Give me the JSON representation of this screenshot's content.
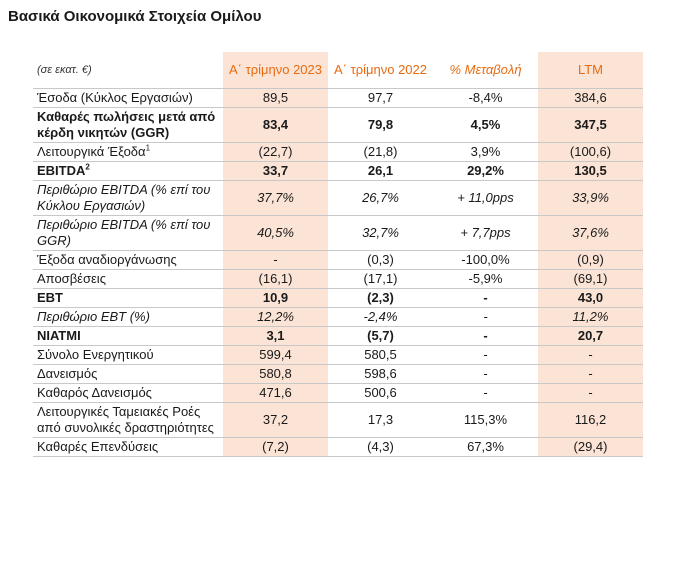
{
  "title": "Βασικά Οικονομικά Στοιχεία Ομίλου",
  "header": {
    "unit": "(σε εκατ. €)",
    "col1": "Α΄ τρίμηνο 2023",
    "col2": "Α΄ τρίμηνο 2022",
    "col3": "% Μεταβολή",
    "col4": "LTM"
  },
  "rows": [
    {
      "label": "Έσοδα (Κύκλος Εργασιών)",
      "sup": "",
      "v1": "89,5",
      "v2": "97,7",
      "v3": "-8,4%",
      "v4": "384,6",
      "style": "normal"
    },
    {
      "label": "Καθαρές πωλήσεις μετά από κέρδη νικητών (GGR)",
      "sup": "",
      "v1": "83,4",
      "v2": "79,8",
      "v3": "4,5%",
      "v4": "347,5",
      "style": "bold"
    },
    {
      "label": "Λειτουργικά Έξοδα",
      "sup": "1",
      "v1": "(22,7)",
      "v2": "(21,8)",
      "v3": "3,9%",
      "v4": "(100,6)",
      "style": "normal"
    },
    {
      "label": "EBITDA",
      "sup": "2",
      "v1": "33,7",
      "v2": "26,1",
      "v3": "29,2%",
      "v4": "130,5",
      "style": "boldtop"
    },
    {
      "label": "Περιθώριο EBITDA (% επί του Κύκλου Εργασιών)",
      "sup": "",
      "v1": "37,7%",
      "v2": "26,7%",
      "v3": "+ 11,0pps",
      "v4": "33,9%",
      "style": "ital"
    },
    {
      "label": "Περιθώριο EBITDA (% επί του GGR)",
      "sup": "",
      "v1": "40,5%",
      "v2": "32,7%",
      "v3": "+ 7,7pps",
      "v4": "37,6%",
      "style": "ital"
    },
    {
      "label": "Έξοδα αναδιοργάνωσης",
      "sup": "",
      "v1": "-",
      "v2": "(0,3)",
      "v3": "-100,0%",
      "v4": "(0,9)",
      "style": "normal"
    },
    {
      "label": "Αποσβέσεις",
      "sup": "",
      "v1": "(16,1)",
      "v2": "(17,1)",
      "v3": "-5,9%",
      "v4": "(69,1)",
      "style": "normal"
    },
    {
      "label": "EBT",
      "sup": "",
      "v1": "10,9",
      "v2": "(2,3)",
      "v3": "-",
      "v4": "43,0",
      "style": "boldtop"
    },
    {
      "label": "Περιθώριο EBT (%)",
      "sup": "",
      "v1": "12,2%",
      "v2": "-2,4%",
      "v3": "-",
      "v4": "11,2%",
      "style": "ital"
    },
    {
      "label": "ΝΙΑΤΜΙ",
      "sup": "",
      "v1": "3,1",
      "v2": "(5,7)",
      "v3": "-",
      "v4": "20,7",
      "style": "boldtop"
    },
    {
      "label": "Σύνολο Ενεργητικού",
      "sup": "",
      "v1": "599,4",
      "v2": "580,5",
      "v3": "-",
      "v4": "-",
      "style": "normal"
    },
    {
      "label": "Δανεισμός",
      "sup": "",
      "v1": "580,8",
      "v2": "598,6",
      "v3": "-",
      "v4": "-",
      "style": "normal"
    },
    {
      "label": "Καθαρός Δανεισμός",
      "sup": "",
      "v1": "471,6",
      "v2": "500,6",
      "v3": "-",
      "v4": "-",
      "style": "normal"
    },
    {
      "label": "Λειτουργικές Ταμειακές Ροές από συνολικές δραστηριότητες",
      "sup": "",
      "v1": "37,2",
      "v2": "17,3",
      "v3": "115,3%",
      "v4": "116,2",
      "style": "normal",
      "center": true
    },
    {
      "label": "Καθαρές Επενδύσεις",
      "sup": "",
      "v1": "(7,2)",
      "v2": "(4,3)",
      "v3": "67,3%",
      "v4": "(29,4)",
      "style": "normal"
    }
  ]
}
